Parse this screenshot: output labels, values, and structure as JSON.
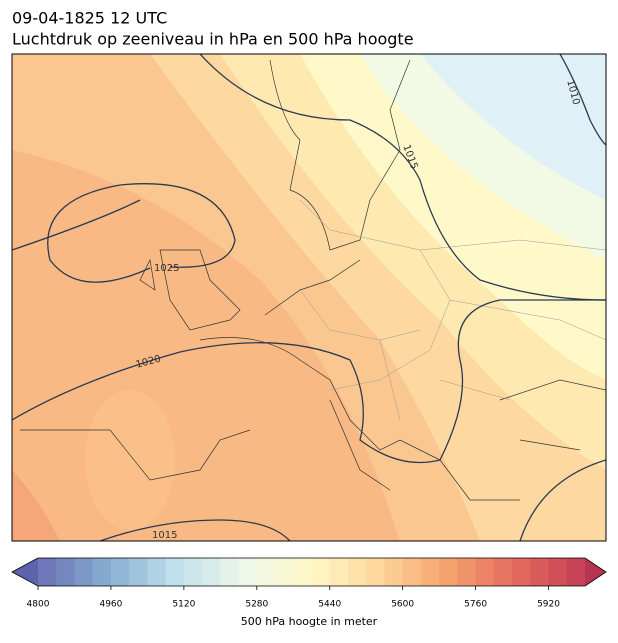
{
  "header": {
    "date": "09-04-1825 12 UTC",
    "title": "Luchtdruk op zeeniveau in hPa en 500 hPa hoogte"
  },
  "isobar_labels": [
    1010,
    1015,
    1025,
    1020,
    1015
  ],
  "colorbar": {
    "label": "500 hPa hoogte in meter",
    "range": [
      4800,
      6000
    ],
    "step": 40,
    "ticks": [
      4800,
      4960,
      5120,
      5280,
      5440,
      5600,
      5760,
      5920
    ],
    "colors": [
      "#6a6fb3",
      "#86acd0",
      "#bfe0ec",
      "#eef7ea",
      "#fff8c6",
      "#fdd59a",
      "#f6a26f",
      "#e36a5d",
      "#c33d57"
    ],
    "under_color": "#5f63ab",
    "over_color": "#b6344f"
  }
}
